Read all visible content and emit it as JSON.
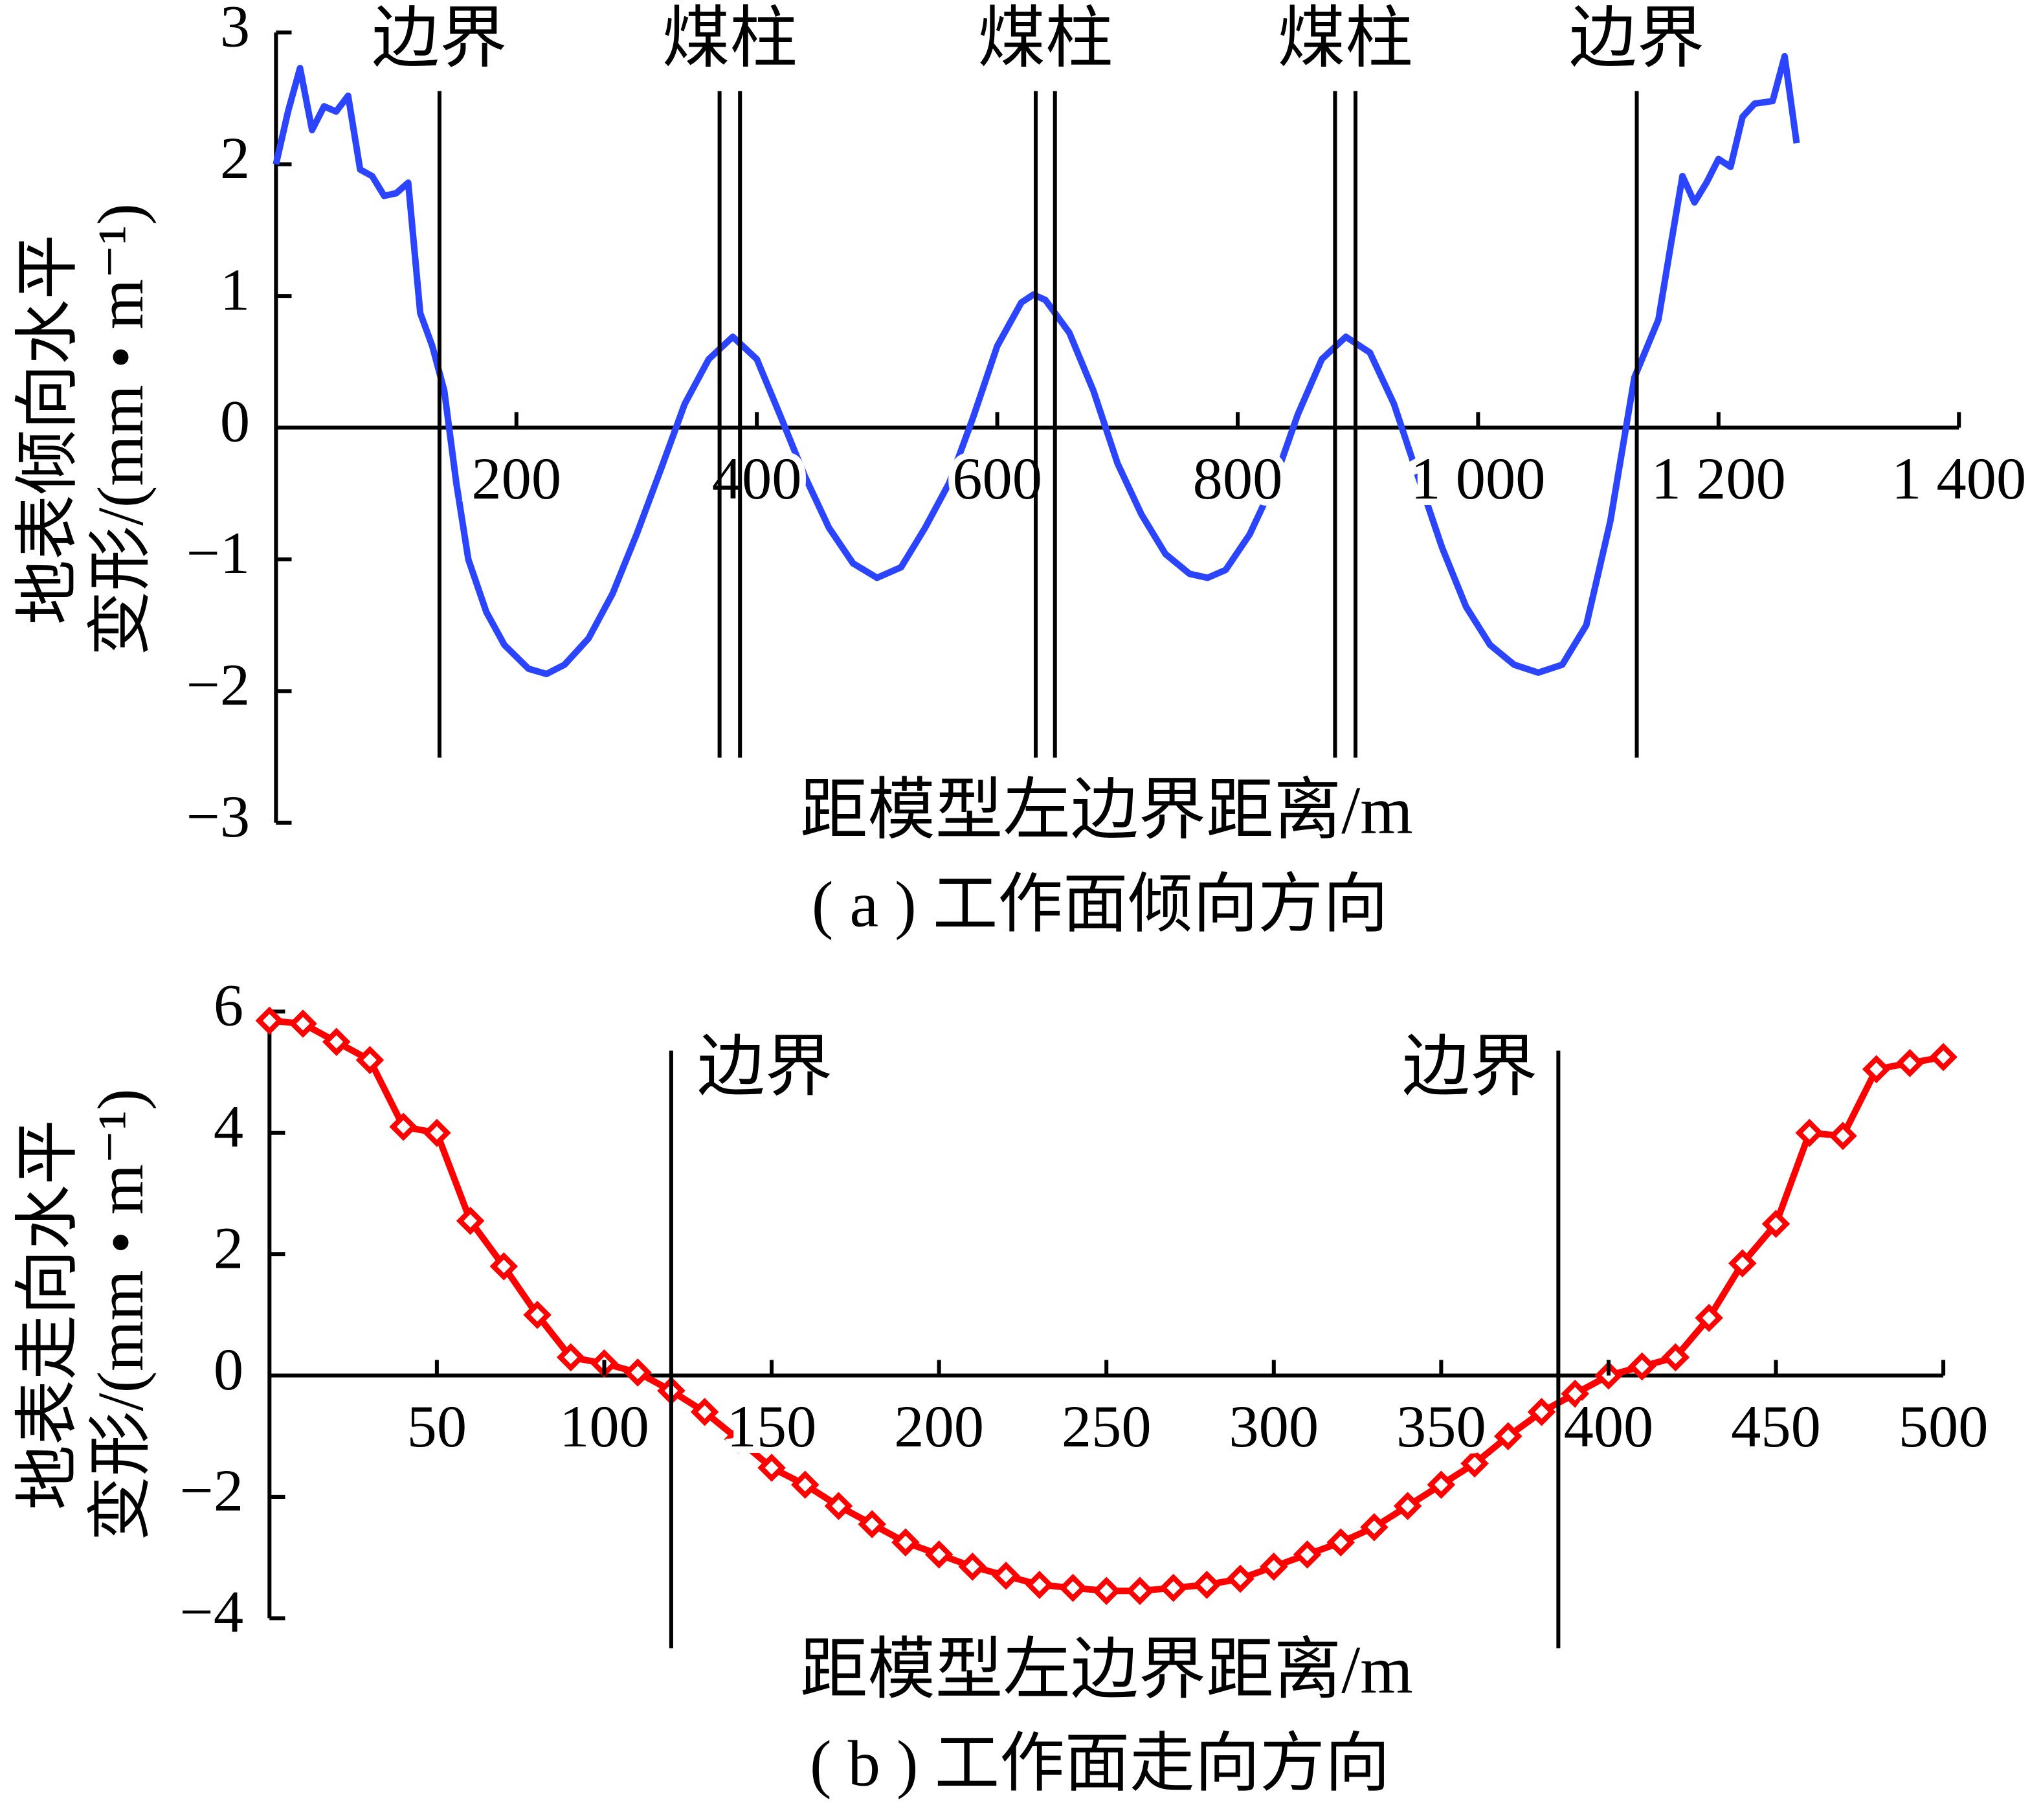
{
  "chart_data": [
    {
      "type": "line",
      "color": "#2b45ff",
      "ylabel": [
        "地表倾向水平",
        "变形/(mm • m⁻¹)"
      ],
      "xlabel": "距模型左边界距离/m",
      "caption": "( a ) 工作面倾向方向",
      "xlim": [
        0,
        1400
      ],
      "xticks": [
        200,
        400,
        600,
        800,
        {
          "value": 1000,
          "label": "1 000"
        },
        {
          "value": 1200,
          "label": "1 200"
        },
        {
          "value": 1400,
          "label": "1 400"
        }
      ],
      "ylim": [
        -3,
        3
      ],
      "yticks": [
        {
          "value": -3,
          "label": "−3"
        },
        {
          "value": -2,
          "label": "−2"
        },
        {
          "value": -1,
          "label": "−1"
        },
        0,
        1,
        2,
        3
      ],
      "boundaries": [
        {
          "label": "边界",
          "x": [
            136
          ]
        },
        {
          "label": "煤柱",
          "x": [
            369,
            386
          ]
        },
        {
          "label": "煤柱",
          "x": [
            632,
            648
          ]
        },
        {
          "label": "煤柱",
          "x": [
            881,
            898
          ]
        },
        {
          "label": "边界",
          "x": [
            1132
          ]
        }
      ],
      "x": [
        0,
        10,
        20,
        30,
        40,
        50,
        60,
        70,
        80,
        90,
        100,
        110,
        120,
        130,
        140,
        150,
        160,
        175,
        190,
        210,
        225,
        240,
        260,
        280,
        300,
        320,
        340,
        360,
        380,
        400,
        420,
        440,
        460,
        480,
        500,
        520,
        540,
        560,
        580,
        600,
        620,
        630,
        640,
        660,
        680,
        700,
        720,
        740,
        760,
        775,
        790,
        810,
        830,
        850,
        870,
        890,
        910,
        930,
        950,
        970,
        990,
        1010,
        1030,
        1050,
        1070,
        1090,
        1110,
        1130,
        1150,
        1160,
        1170,
        1180,
        1190,
        1200,
        1210,
        1220,
        1230,
        1245,
        1255,
        1265
      ],
      "values": [
        2.0,
        2.4,
        2.73,
        2.26,
        2.44,
        2.4,
        2.52,
        1.96,
        1.91,
        1.76,
        1.78,
        1.86,
        0.87,
        0.62,
        0.28,
        -0.42,
        -1.0,
        -1.4,
        -1.65,
        -1.83,
        -1.87,
        -1.8,
        -1.6,
        -1.26,
        -0.81,
        -0.32,
        0.18,
        0.52,
        0.69,
        0.52,
        0.08,
        -0.37,
        -0.76,
        -1.03,
        -1.14,
        -1.06,
        -0.76,
        -0.42,
        0.08,
        0.62,
        0.95,
        1.01,
        0.97,
        0.72,
        0.28,
        -0.27,
        -0.66,
        -0.96,
        -1.11,
        -1.14,
        -1.08,
        -0.81,
        -0.42,
        0.1,
        0.52,
        0.69,
        0.57,
        0.18,
        -0.37,
        -0.91,
        -1.36,
        -1.65,
        -1.8,
        -1.86,
        -1.8,
        -1.5,
        -0.71,
        0.38,
        0.82,
        1.37,
        1.91,
        1.71,
        1.86,
        2.04,
        1.98,
        2.36,
        2.46,
        2.48,
        2.82,
        2.16
      ]
    },
    {
      "type": "line",
      "color": "#ff0000",
      "markers": true,
      "ylabel": [
        "地表走向水平",
        "变形/(mm • m⁻¹)"
      ],
      "xlabel": "距模型左边界距离/m",
      "caption": "( b ) 工作面走向方向",
      "xlim": [
        0,
        500
      ],
      "xticks": [
        50,
        100,
        150,
        200,
        250,
        300,
        350,
        400,
        450,
        500
      ],
      "ylim": [
        -4,
        6
      ],
      "yticks": [
        {
          "value": -4,
          "label": "−4"
        },
        {
          "value": -2,
          "label": "−2"
        },
        0,
        2,
        4,
        6
      ],
      "boundaries": [
        {
          "label": "边界",
          "x": [
            120
          ]
        },
        {
          "label": "边界",
          "x": [
            385
          ]
        }
      ],
      "x": [
        0,
        10,
        20,
        30,
        40,
        50,
        60,
        70,
        80,
        90,
        100,
        110,
        120,
        130,
        140,
        150,
        160,
        170,
        180,
        190,
        200,
        210,
        220,
        230,
        240,
        250,
        260,
        270,
        280,
        290,
        300,
        310,
        320,
        330,
        340,
        350,
        360,
        370,
        380,
        390,
        400,
        410,
        420,
        430,
        440,
        450,
        460,
        470,
        480,
        490,
        500
      ],
      "values": [
        5.85,
        5.8,
        5.5,
        5.2,
        4.1,
        4.0,
        2.55,
        1.8,
        1.0,
        0.3,
        0.2,
        0.05,
        -0.25,
        -0.6,
        -1.05,
        -1.52,
        -1.8,
        -2.15,
        -2.45,
        -2.75,
        -2.95,
        -3.15,
        -3.3,
        -3.45,
        -3.5,
        -3.55,
        -3.55,
        -3.5,
        -3.45,
        -3.35,
        -3.15,
        -2.95,
        -2.75,
        -2.5,
        -2.15,
        -1.8,
        -1.45,
        -1.0,
        -0.6,
        -0.3,
        0.0,
        0.15,
        0.3,
        0.95,
        1.85,
        2.5,
        4.0,
        3.95,
        5.05,
        5.15,
        5.25
      ]
    }
  ]
}
